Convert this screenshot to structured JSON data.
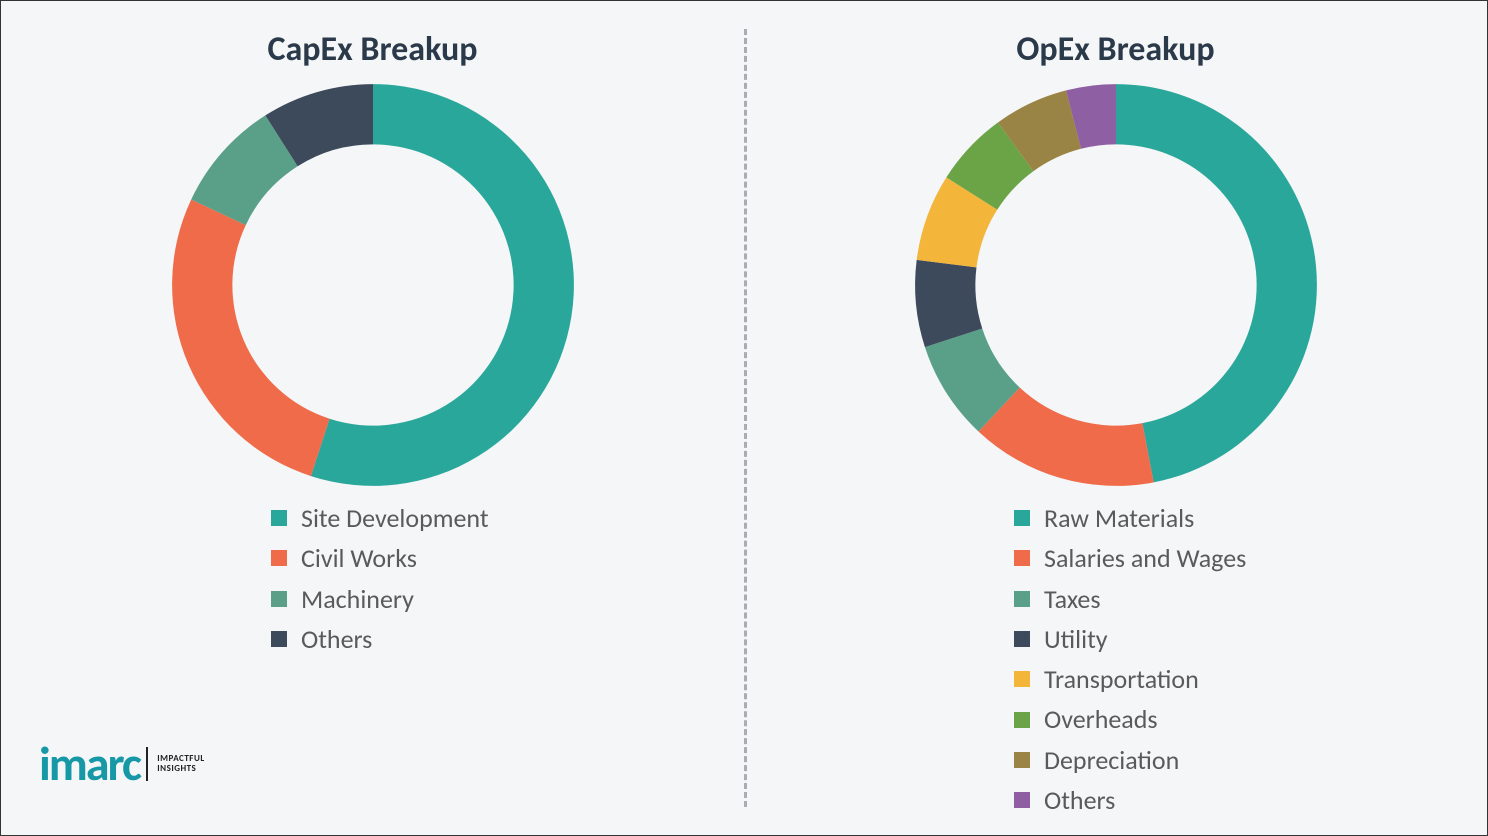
{
  "background_color": "#f5f6f7",
  "border_color": "#333333",
  "divider_color": "#a9acb0",
  "title_color": "#2b3a4a",
  "title_fontsize": 34,
  "legend_fontsize": 26,
  "legend_text_color": "#5a5a5a",
  "donut": {
    "inner_radius_ratio": 0.7,
    "start_angle_deg": 0
  },
  "capex": {
    "type": "donut",
    "title": "CapEx Breakup",
    "series": [
      {
        "label": "Site Development",
        "value": 55,
        "color": "#2aa79b"
      },
      {
        "label": "Civil Works",
        "value": 27,
        "color": "#ef6b4a"
      },
      {
        "label": "Machinery",
        "value": 9,
        "color": "#5aa089"
      },
      {
        "label": "Others",
        "value": 9,
        "color": "#3d4a5c"
      }
    ]
  },
  "opex": {
    "type": "donut",
    "title": "OpEx Breakup",
    "series": [
      {
        "label": "Raw Materials",
        "value": 47,
        "color": "#2aa79b"
      },
      {
        "label": "Salaries and Wages",
        "value": 15,
        "color": "#ef6b4a"
      },
      {
        "label": "Taxes",
        "value": 8,
        "color": "#5aa089"
      },
      {
        "label": "Utility",
        "value": 7,
        "color": "#3d4a5c"
      },
      {
        "label": "Transportation",
        "value": 7,
        "color": "#f3b63b"
      },
      {
        "label": "Overheads",
        "value": 6,
        "color": "#6aa447"
      },
      {
        "label": "Depreciation",
        "value": 6,
        "color": "#9a8445"
      },
      {
        "label": "Others",
        "value": 4,
        "color": "#8e5fa2"
      }
    ]
  },
  "logo": {
    "main": "imarc",
    "tagline1": "IMPACTFUL",
    "tagline2": "INSIGHTS",
    "main_color": "#1698a6"
  }
}
